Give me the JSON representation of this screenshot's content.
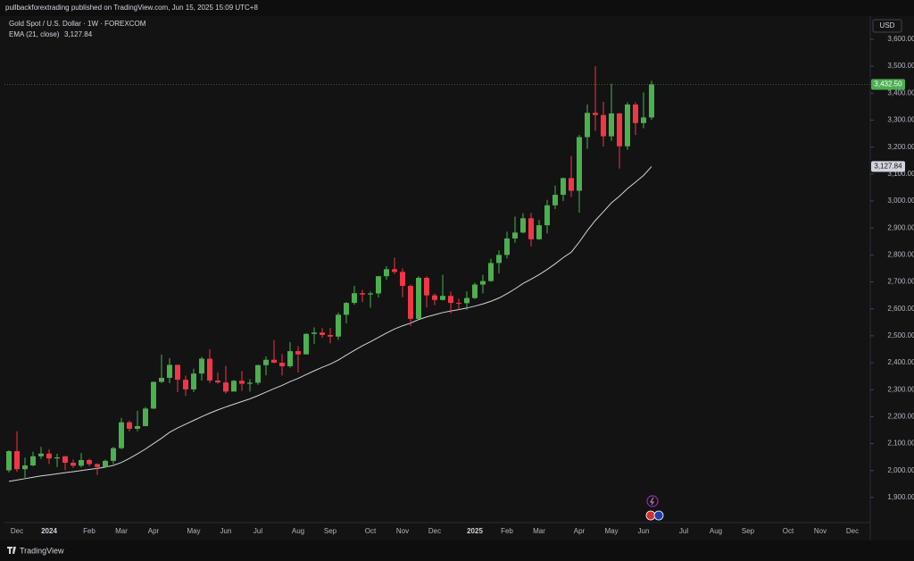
{
  "chart_data": {
    "type": "candlestick",
    "publisher": "pullbackforextrading published on TradingView.com, Jun 15, 2025 15:09 UTC+8",
    "title": "Gold Spot / U.S. Dollar · 1W · FOREXCOM",
    "currency": "USD",
    "footer": "TradingView",
    "up_color": "#4caf50",
    "down_color": "#f23645",
    "grid": false,
    "categories": [
      null,
      "Dec",
      null,
      null,
      null,
      "2024",
      null,
      null,
      null,
      null,
      "Feb",
      null,
      null,
      null,
      "Mar",
      null,
      null,
      null,
      "Apr",
      null,
      null,
      null,
      null,
      "May",
      null,
      null,
      null,
      "Jun",
      null,
      null,
      null,
      "Jul",
      null,
      null,
      null,
      null,
      "Aug",
      null,
      null,
      null,
      "Sep",
      null,
      null,
      null,
      null,
      "Oct",
      null,
      null,
      null,
      "Nov",
      null,
      null,
      null,
      "Dec",
      null,
      null,
      null,
      null,
      "2025",
      null,
      null,
      null,
      "Feb",
      null,
      null,
      null,
      "Mar",
      null,
      null,
      null,
      null,
      "Apr",
      null,
      null,
      null,
      "May",
      null,
      null,
      null,
      "Jun",
      null,
      null,
      null,
      null,
      "Jul",
      null,
      null,
      null,
      "Aug",
      null,
      null,
      null,
      "Sep",
      null,
      null,
      null,
      null,
      "Oct",
      null,
      null,
      null,
      "Nov",
      null,
      null,
      null,
      "Dec",
      null,
      null
    ],
    "open": [
      2001,
      2072,
      2005,
      2019,
      2053,
      2063,
      2045,
      2053,
      2029,
      2018,
      2039,
      2024,
      2013,
      2036,
      2083,
      2179,
      2155,
      2165,
      2230,
      2329,
      2344,
      2392,
      2337,
      2301,
      2360,
      2415,
      2334,
      2327,
      2293,
      2333,
      2322,
      2326,
      2391,
      2411,
      2400,
      2387,
      2443,
      2431,
      2507,
      2512,
      2503,
      2497,
      2578,
      2622,
      2658,
      2653,
      2657,
      2721,
      2747,
      2737,
      2685,
      2563,
      2715,
      2650,
      2633,
      2648,
      2622,
      2621,
      2640,
      2690,
      2703,
      2770,
      2800,
      2861,
      2883,
      2936,
      2858,
      2910,
      2984,
      3023,
      3085,
      3038,
      3237,
      3327,
      3319,
      3240,
      3325,
      3203,
      3358,
      3289,
      3310,
      null,
      null,
      null,
      null,
      null,
      null,
      null,
      null,
      null,
      null,
      null,
      null,
      null,
      null,
      null,
      null,
      null,
      null,
      null,
      null,
      null,
      null,
      null,
      null,
      null,
      null,
      null
    ],
    "high": [
      2075,
      2146,
      2048,
      2070,
      2088,
      2079,
      2062,
      2054,
      2041,
      2065,
      2044,
      2026,
      2041,
      2088,
      2195,
      2185,
      2222,
      2236,
      2330,
      2431,
      2417,
      2393,
      2352,
      2378,
      2422,
      2450,
      2364,
      2388,
      2336,
      2369,
      2339,
      2393,
      2424,
      2484,
      2432,
      2477,
      2462,
      2509,
      2531,
      2528,
      2529,
      2586,
      2625,
      2685,
      2670,
      2664,
      2722,
      2758,
      2790,
      2750,
      2690,
      2721,
      2721,
      2657,
      2726,
      2664,
      2638,
      2665,
      2697,
      2726,
      2786,
      2817,
      2886,
      2942,
      2955,
      2956,
      2930,
      3004,
      3057,
      3087,
      3167,
      3245,
      3358,
      3500,
      3368,
      3435,
      3326,
      3366,
      3366,
      3403,
      3446,
      null,
      null,
      null,
      null,
      null,
      null,
      null,
      null,
      null,
      null,
      null,
      null,
      null,
      null,
      null,
      null,
      null,
      null,
      null,
      null,
      null,
      null,
      null,
      null,
      null,
      null,
      null
    ],
    "low": [
      1993,
      1995,
      1973,
      2016,
      2043,
      2024,
      2013,
      2002,
      2010,
      2012,
      2016,
      1984,
      2010,
      2024,
      2079,
      2145,
      2146,
      2164,
      2228,
      2325,
      2324,
      2291,
      2277,
      2291,
      2334,
      2325,
      2322,
      2286,
      2294,
      2296,
      2293,
      2318,
      2353,
      2398,
      2353,
      2381,
      2364,
      2431,
      2470,
      2492,
      2472,
      2485,
      2546,
      2615,
      2625,
      2604,
      2642,
      2708,
      2729,
      2643,
      2536,
      2563,
      2605,
      2614,
      2631,
      2583,
      2597,
      2596,
      2636,
      2657,
      2700,
      2731,
      2787,
      2845,
      2880,
      2832,
      2856,
      2880,
      2970,
      3000,
      3015,
      2957,
      3194,
      3260,
      3202,
      3223,
      3120,
      3190,
      3245,
      3270,
      3301,
      null,
      null,
      null,
      null,
      null,
      null,
      null,
      null,
      null,
      null,
      null,
      null,
      null,
      null,
      null,
      null,
      null,
      null,
      null,
      null,
      null,
      null,
      null,
      null,
      null,
      null,
      null
    ],
    "close": [
      2072,
      2005,
      2019,
      2053,
      2063,
      2045,
      2049,
      2029,
      2018,
      2039,
      2024,
      2013,
      2036,
      2083,
      2179,
      2155,
      2165,
      2230,
      2329,
      2344,
      2392,
      2337,
      2301,
      2360,
      2415,
      2334,
      2327,
      2293,
      2333,
      2322,
      2326,
      2391,
      2411,
      2400,
      2387,
      2443,
      2431,
      2507,
      2512,
      2503,
      2497,
      2578,
      2622,
      2658,
      2653,
      2657,
      2721,
      2747,
      2737,
      2685,
      2563,
      2715,
      2650,
      2633,
      2648,
      2622,
      2621,
      2640,
      2690,
      2703,
      2770,
      2800,
      2861,
      2883,
      2936,
      2858,
      2910,
      2984,
      3023,
      3085,
      3038,
      3237,
      3327,
      3319,
      3240,
      3325,
      3203,
      3358,
      3289,
      3310,
      3432.5,
      null,
      null,
      null,
      null,
      null,
      null,
      null,
      null,
      null,
      null,
      null,
      null,
      null,
      null,
      null,
      null,
      null,
      null,
      null,
      null,
      null,
      null,
      null,
      null,
      null,
      null,
      null
    ],
    "last_close_label": "3,432.50",
    "ema": {
      "name": "EMA (21, close)",
      "color": "#d1d4dc",
      "last_label": "3,127.84",
      "values": [
        1960,
        1965,
        1970,
        1975,
        1980,
        1984,
        1988,
        1992,
        1996,
        2000,
        2004,
        2008,
        2013,
        2019,
        2030,
        2045,
        2062,
        2080,
        2100,
        2120,
        2142,
        2158,
        2172,
        2186,
        2200,
        2213,
        2225,
        2236,
        2246,
        2256,
        2266,
        2278,
        2291,
        2304,
        2316,
        2330,
        2342,
        2356,
        2370,
        2383,
        2395,
        2410,
        2428,
        2446,
        2463,
        2478,
        2494,
        2510,
        2525,
        2537,
        2547,
        2560,
        2570,
        2578,
        2586,
        2592,
        2597,
        2603,
        2610,
        2618,
        2628,
        2640,
        2656,
        2674,
        2694,
        2710,
        2727,
        2746,
        2767,
        2790,
        2810,
        2848,
        2890,
        2928,
        2960,
        2993,
        3018,
        3046,
        3070,
        3095,
        3127.84,
        null,
        null,
        null,
        null,
        null,
        null,
        null,
        null,
        null,
        null,
        null,
        null,
        null,
        null,
        null,
        null,
        null,
        null,
        null,
        null,
        null,
        null,
        null,
        null,
        null,
        null,
        null
      ]
    },
    "ylim": [
      1807,
      3686
    ],
    "yticks": [
      {
        "value": 1900,
        "label": "1,900.00"
      },
      {
        "value": 2000,
        "label": "2,000.00"
      },
      {
        "value": 2100,
        "label": "2,100.00"
      },
      {
        "value": 2200,
        "label": "2,200.00"
      },
      {
        "value": 2300,
        "label": "2,300.00"
      },
      {
        "value": 2400,
        "label": "2,400.00"
      },
      {
        "value": 2500,
        "label": "2,500.00"
      },
      {
        "value": 2600,
        "label": "2,600.00"
      },
      {
        "value": 2700,
        "label": "2,700.00"
      },
      {
        "value": 2800,
        "label": "2,800.00"
      },
      {
        "value": 2900,
        "label": "2,900.00"
      },
      {
        "value": 3000,
        "label": "3,000.00"
      },
      {
        "value": 3100,
        "label": "3,100.00"
      },
      {
        "value": 3200,
        "label": "3,200.00"
      },
      {
        "value": 3300,
        "label": "3,300.00"
      },
      {
        "value": 3400,
        "label": "3,400.00"
      },
      {
        "value": 3500,
        "label": "3,500.00"
      },
      {
        "value": 3600,
        "label": "3,600.00"
      }
    ]
  }
}
